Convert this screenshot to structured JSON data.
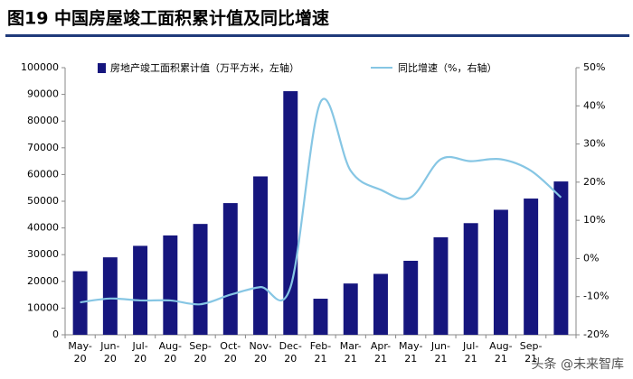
{
  "chart_data": {
    "type": "bar_line",
    "title": "图19 中国房屋竣工面积累计值及同比增速",
    "categories": [
      "May-\n20",
      "Jun-\n20",
      "Jul-\n20",
      "Aug-\n20",
      "Sep-\n20",
      "Oct-\n20",
      "Nov-\n20",
      "Dec-\n20",
      "Feb-\n21",
      "Mar-\n21",
      "Apr-\n21",
      "May-\n21",
      "Jun-\n21",
      "Jul-\n21",
      "Aug-\n21",
      "Sep-\n21",
      null
    ],
    "series": [
      {
        "name": "房地产竣工面积累计值（万平方米，左轴）",
        "type": "bar",
        "color": "#16167e",
        "values": [
          23800,
          29000,
          33300,
          37200,
          41500,
          49300,
          59300,
          91200,
          13500,
          19200,
          22800,
          27700,
          36500,
          41800,
          46800,
          51000,
          57400
        ]
      },
      {
        "name": "同比增速（%，右轴）",
        "type": "line",
        "axis": "y2",
        "color": "#86c6e4",
        "values": [
          -11.5,
          -10.5,
          -11,
          -11,
          -12,
          -9.5,
          -7.5,
          -7.5,
          41,
          23,
          18,
          16,
          26,
          25.5,
          26,
          23,
          16
        ]
      }
    ],
    "ylim": [
      0,
      100000
    ],
    "yticks": [
      0,
      10000,
      20000,
      30000,
      40000,
      50000,
      60000,
      70000,
      80000,
      90000,
      100000
    ],
    "y2lim": [
      -20,
      50
    ],
    "y2ticks": [
      {
        "value": -20,
        "label": "-20%"
      },
      {
        "value": -10,
        "label": "-10%"
      },
      {
        "value": 0,
        "label": "0%"
      },
      {
        "value": 10,
        "label": "10%"
      },
      {
        "value": 20,
        "label": "20%"
      },
      {
        "value": 30,
        "label": "30%"
      },
      {
        "value": 40,
        "label": "40%"
      },
      {
        "value": 50,
        "label": "50%"
      }
    ],
    "watermark": "头条 @未来智库"
  }
}
